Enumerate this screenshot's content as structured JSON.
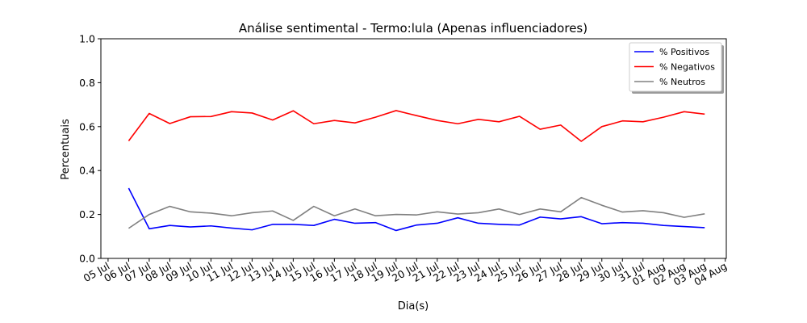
{
  "chart_data": {
    "type": "line",
    "title": "Análise sentimental - Termo:lula (Apenas influenciadores)",
    "xlabel": "Dia(s)",
    "ylabel": "Percentuais",
    "ylim": [
      0,
      1.0
    ],
    "yticks": [
      "0.0",
      "0.2",
      "0.4",
      "0.6",
      "0.8",
      "1.0"
    ],
    "x_tick_labels": [
      "05 Jul",
      "06 Jul",
      "07 Jul",
      "08 Jul",
      "09 Jul",
      "10 Jul",
      "11 Jul",
      "12 Jul",
      "13 Jul",
      "14 Jul",
      "15 Jul",
      "16 Jul",
      "17 Jul",
      "18 Jul",
      "19 Jul",
      "20 Jul",
      "21 Jul",
      "22 Jul",
      "23 Jul",
      "24 Jul",
      "25 Jul",
      "26 Jul",
      "27 Jul",
      "28 Jul",
      "29 Jul",
      "30 Jul",
      "31 Jul",
      "01 Aug",
      "02 Aug",
      "03 Aug",
      "04 Aug"
    ],
    "categories": [
      "06 Jul",
      "07 Jul",
      "08 Jul",
      "09 Jul",
      "10 Jul",
      "11 Jul",
      "12 Jul",
      "13 Jul",
      "14 Jul",
      "15 Jul",
      "16 Jul",
      "17 Jul",
      "18 Jul",
      "19 Jul",
      "20 Jul",
      "21 Jul",
      "22 Jul",
      "23 Jul",
      "24 Jul",
      "25 Jul",
      "26 Jul",
      "27 Jul",
      "28 Jul",
      "29 Jul",
      "30 Jul",
      "31 Jul",
      "01 Aug",
      "02 Aug",
      "03 Aug"
    ],
    "grid": false,
    "legend_position": "top-right",
    "series": [
      {
        "name": "% Positivos",
        "color": "#0000ff",
        "values": [
          0.32,
          0.135,
          0.15,
          0.143,
          0.148,
          0.138,
          0.13,
          0.155,
          0.155,
          0.15,
          0.178,
          0.16,
          0.163,
          0.127,
          0.152,
          0.16,
          0.185,
          0.16,
          0.155,
          0.152,
          0.188,
          0.18,
          0.19,
          0.158,
          0.163,
          0.16,
          0.15,
          0.145,
          0.14
        ]
      },
      {
        "name": "% Negativos",
        "color": "#ff0000",
        "values": [
          0.535,
          0.66,
          0.614,
          0.645,
          0.646,
          0.668,
          0.662,
          0.63,
          0.672,
          0.613,
          0.628,
          0.617,
          0.643,
          0.673,
          0.65,
          0.628,
          0.613,
          0.633,
          0.622,
          0.647,
          0.588,
          0.607,
          0.533,
          0.6,
          0.626,
          0.622,
          0.643,
          0.668,
          0.657
        ]
      },
      {
        "name": "% Neutros",
        "color": "#808080",
        "values": [
          0.137,
          0.2,
          0.237,
          0.212,
          0.206,
          0.194,
          0.208,
          0.216,
          0.173,
          0.237,
          0.194,
          0.225,
          0.194,
          0.2,
          0.198,
          0.212,
          0.202,
          0.208,
          0.225,
          0.2,
          0.225,
          0.212,
          0.277,
          0.242,
          0.211,
          0.217,
          0.208,
          0.187,
          0.203
        ]
      }
    ]
  }
}
